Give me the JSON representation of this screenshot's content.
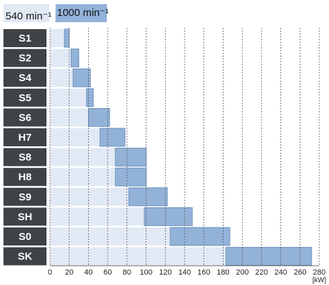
{
  "chart_data": {
    "type": "range-bar",
    "categories": [
      "S1",
      "S2",
      "S4",
      "S5",
      "S6",
      "H7",
      "S8",
      "H8",
      "S9",
      "SH",
      "S0",
      "SK"
    ],
    "series": [
      {
        "name": "540 min⁻¹",
        "color": "#e1e9f4",
        "values": [
          15,
          22,
          24,
          38,
          40,
          52,
          68,
          68,
          82,
          98,
          125,
          183
        ]
      },
      {
        "name": "1000 min⁻¹",
        "color": "#92b2d8",
        "values": [
          20,
          30,
          42,
          45,
          62,
          78,
          100,
          100,
          122,
          148,
          187,
          272
        ]
      }
    ],
    "x_label": "[kW]",
    "xlim": [
      0,
      280
    ],
    "xticks": [
      0,
      20,
      40,
      60,
      80,
      100,
      120,
      140,
      160,
      180,
      200,
      220,
      240,
      260,
      280
    ],
    "grid": true
  }
}
